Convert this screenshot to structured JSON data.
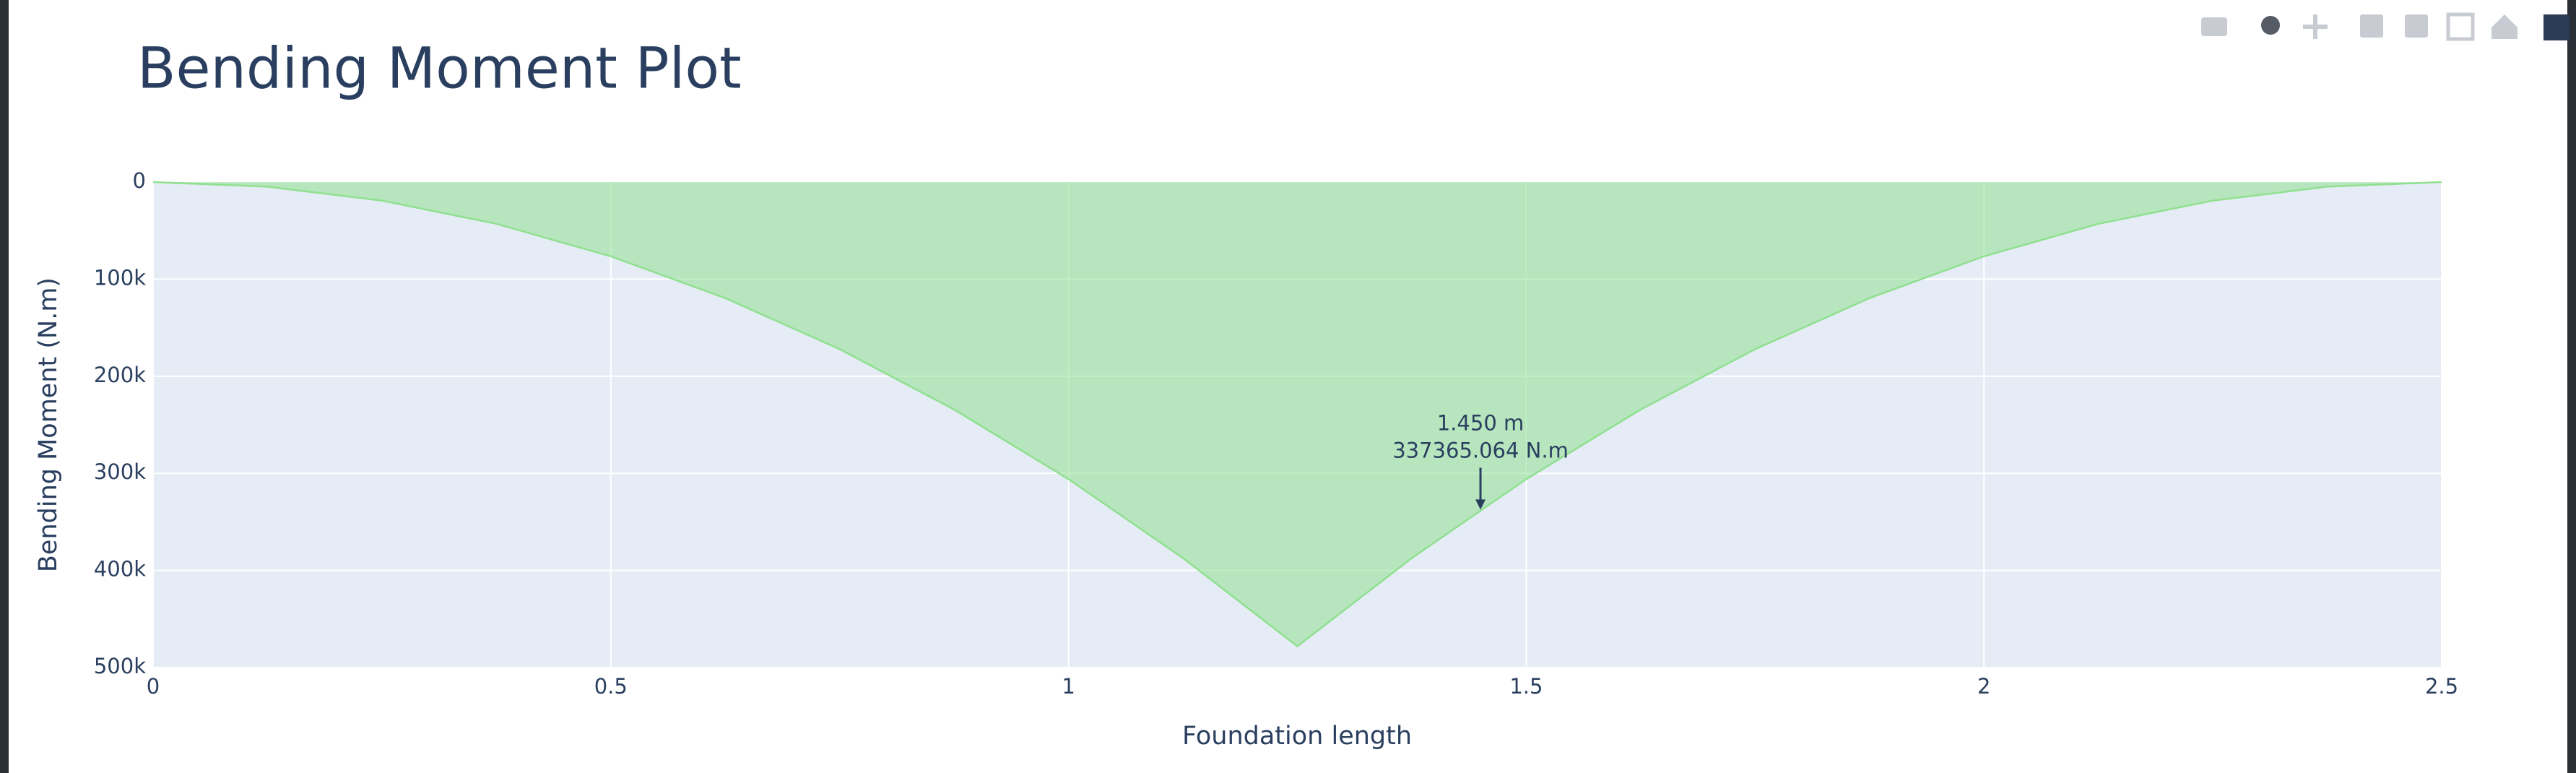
{
  "chart_data": {
    "type": "area",
    "title": "Bending Moment Plot",
    "x_label": "Foundation length",
    "y_label": "Bending Moment (N.m)",
    "x": [
      0,
      0.125,
      0.25,
      0.375,
      0.5,
      0.625,
      0.75,
      0.875,
      1,
      1.125,
      1.25,
      1.375,
      1.5,
      1.625,
      1.75,
      1.875,
      2,
      2.125,
      2.25,
      2.375,
      2.5
    ],
    "values": [
      0,
      4781,
      19125,
      43031,
      76500,
      119531,
      172125,
      234281,
      306000,
      387281,
      478125,
      387281,
      306000,
      234281,
      172125,
      119531,
      76500,
      43031,
      19125,
      4781,
      0
    ],
    "color": "#90e090",
    "xlim": [
      0,
      2.5
    ],
    "xticks": [
      0,
      0.5,
      1,
      1.5,
      2,
      2.5
    ],
    "ylim": [
      0,
      500000
    ],
    "y_reversed": true,
    "yticks": [
      0,
      {
        "value": 100000,
        "label": "100k"
      },
      {
        "value": 200000,
        "label": "200k"
      },
      {
        "value": 300000,
        "label": "300k"
      },
      {
        "value": 400000,
        "label": "400k"
      },
      {
        "value": 500000,
        "label": "500k"
      }
    ],
    "grid": true,
    "annotation": {
      "x": 1.45,
      "y": 337365.064,
      "text": [
        "1.450 m",
        "337365.064 N.m"
      ]
    }
  }
}
